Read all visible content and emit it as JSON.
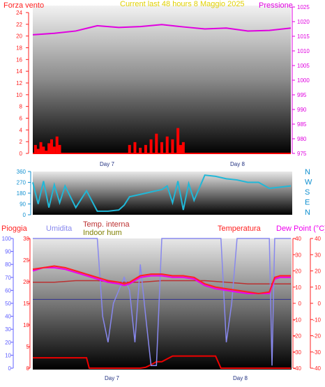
{
  "colors": {
    "wind": "#ff0000",
    "pressure": "#e000e0",
    "direction": "#20b8d8",
    "humidity": "#8888ee",
    "temperature": "#ff2020",
    "dewpoint": "#ee00ee",
    "indoor_temp": "#bb3030",
    "indoor_hum": "#303090",
    "rain": "#ee0000",
    "title": "#e0d000",
    "axis_left": "#ff2020",
    "axis_blue": "#6060ff",
    "axis_dir": "#1090d0"
  },
  "chart_data": [
    {
      "type": "line",
      "title": "Current last 48 hours 8 Maggio 2025",
      "ylabel_left": "Forza vento",
      "ylabel_right": "Pressione",
      "yticks_left": [
        "0",
        "2",
        "4",
        "6",
        "8",
        "10",
        "12",
        "14",
        "16",
        "18",
        "20",
        "22",
        "24"
      ],
      "yticks_right": [
        "975",
        "980",
        "985",
        "990",
        "995",
        "1000",
        "1005",
        "1010",
        "1015",
        "1020",
        "1025"
      ],
      "ylim_left": [
        0,
        25
      ],
      "ylim_right": [
        975,
        1025
      ],
      "xticks": [
        "Day 7",
        "Day 8"
      ],
      "series": [
        {
          "name": "Pressione",
          "axis": "right",
          "x": [
            0,
            4,
            8,
            12,
            16,
            20,
            24,
            28,
            32,
            36,
            40,
            44,
            48
          ],
          "values": [
            1015.5,
            1016,
            1016.8,
            1018.6,
            1018.0,
            1018.3,
            1019.0,
            1018.2,
            1017.5,
            1017.8,
            1016.8,
            1017.0,
            1017.8
          ]
        },
        {
          "name": "Forza vento",
          "axis": "left",
          "x": [
            0.5,
            1,
            1.5,
            2,
            2.5,
            3,
            3.5,
            4,
            4.5,
            5,
            6,
            18,
            19,
            20,
            21,
            22,
            23,
            24,
            25,
            26,
            27,
            27.5,
            28
          ],
          "values": [
            1.5,
            0.8,
            2,
            1.2,
            0.5,
            1.8,
            2.5,
            1.2,
            3,
            1.5,
            0,
            1.5,
            2,
            1,
            1.5,
            2.5,
            3.5,
            2,
            3,
            2.5,
            4.5,
            1.5,
            2
          ]
        }
      ]
    },
    {
      "type": "line",
      "yticks_left": [
        "0",
        "90",
        "180",
        "270",
        "360"
      ],
      "yticks_right": [
        "N",
        "W",
        "S",
        "E",
        "N"
      ],
      "ylim": [
        0,
        360
      ],
      "xticks": [
        "Day 7",
        "Day 8"
      ],
      "series": [
        {
          "name": "Direzione vento",
          "x": [
            0,
            1,
            2,
            3,
            4,
            5,
            6,
            8,
            10,
            12,
            14,
            16,
            17,
            18,
            20,
            22,
            24,
            25,
            26,
            27,
            28,
            29,
            30,
            32,
            34,
            36,
            38,
            40,
            42,
            44,
            46,
            48
          ],
          "values": [
            270,
            90,
            280,
            60,
            250,
            100,
            240,
            60,
            200,
            30,
            30,
            40,
            80,
            150,
            170,
            190,
            210,
            240,
            100,
            280,
            40,
            260,
            120,
            330,
            320,
            300,
            290,
            270,
            270,
            220,
            230,
            240
          ]
        }
      ]
    },
    {
      "type": "line",
      "legend": [
        "Pioggia",
        "Umidita",
        "Temp. interna",
        "Indoor hum",
        "Temperatura",
        "Dew Point (°C)"
      ],
      "yticks_left1": [
        "0",
        "5",
        "10",
        "15",
        "20",
        "25",
        "30"
      ],
      "yticks_left2": [
        "0",
        "10",
        "20",
        "30",
        "40",
        "50",
        "60",
        "70",
        "80",
        "90",
        "100"
      ],
      "yticks_right1": [
        "-40",
        "-30",
        "-20",
        "-10",
        "0",
        "10",
        "20",
        "30",
        "40"
      ],
      "yticks_right2": [
        "-40",
        "-30",
        "-20",
        "-10",
        "0",
        "10",
        "20",
        "30",
        "40"
      ],
      "xticks": [
        "Day 7",
        "Day 8"
      ],
      "series": [
        {
          "name": "Temperatura",
          "x": [
            0,
            2,
            4,
            6,
            8,
            10,
            12,
            14,
            16,
            17,
            18,
            20,
            22,
            24,
            26,
            28,
            30,
            32,
            34,
            36,
            38,
            40,
            42,
            44,
            45,
            46,
            48
          ],
          "values": [
            21,
            22,
            23,
            22,
            20,
            18,
            16,
            14,
            13,
            12,
            13,
            17,
            18,
            18,
            17,
            17,
            16,
            12,
            10,
            9,
            8,
            7,
            6,
            7,
            16,
            17,
            17
          ]
        },
        {
          "name": "Dew Point (°C)",
          "x": [
            0,
            2,
            4,
            6,
            8,
            10,
            12,
            14,
            16,
            17,
            18,
            20,
            22,
            24,
            26,
            28,
            30,
            32,
            34,
            36,
            38,
            40,
            42,
            44,
            45,
            46,
            48
          ],
          "values": [
            20,
            22,
            22,
            21,
            19,
            17,
            15,
            13,
            12,
            11,
            12,
            16,
            17,
            17,
            16,
            16,
            15,
            11,
            9,
            8,
            7,
            6,
            6,
            6,
            15,
            16,
            16
          ]
        },
        {
          "name": "Temp. interna",
          "x": [
            0,
            4,
            8,
            12,
            16,
            20,
            24,
            28,
            32,
            36,
            40,
            44,
            48
          ],
          "values": [
            13,
            13,
            14,
            14,
            13,
            13,
            14,
            14,
            14,
            13,
            12,
            12,
            12
          ]
        },
        {
          "name": "Indoor hum",
          "x": [
            0,
            48
          ],
          "values": [
            53,
            53
          ]
        },
        {
          "name": "Umidita",
          "x": [
            0,
            12,
            13,
            14,
            15,
            16,
            17,
            18,
            19,
            20,
            21,
            22,
            23,
            24,
            25,
            26,
            27,
            28,
            30,
            32,
            34,
            35,
            36,
            37,
            38,
            40,
            42,
            44,
            44.5,
            45,
            46,
            48
          ],
          "values": [
            100,
            100,
            40,
            20,
            50,
            60,
            70,
            60,
            20,
            80,
            40,
            2,
            2,
            100,
            100,
            100,
            100,
            100,
            100,
            100,
            100,
            100,
            20,
            50,
            100,
            100,
            100,
            100,
            2,
            100,
            100,
            100
          ]
        },
        {
          "name": "Pioggia",
          "x": [
            0,
            10,
            10.5,
            20,
            21,
            22,
            23,
            24,
            26,
            28,
            34,
            35,
            48
          ],
          "values": [
            2.4,
            2.4,
            0,
            0,
            0.2,
            0.8,
            1.5,
            1.5,
            2.8,
            2.8,
            2.8,
            0,
            0
          ]
        }
      ]
    }
  ]
}
